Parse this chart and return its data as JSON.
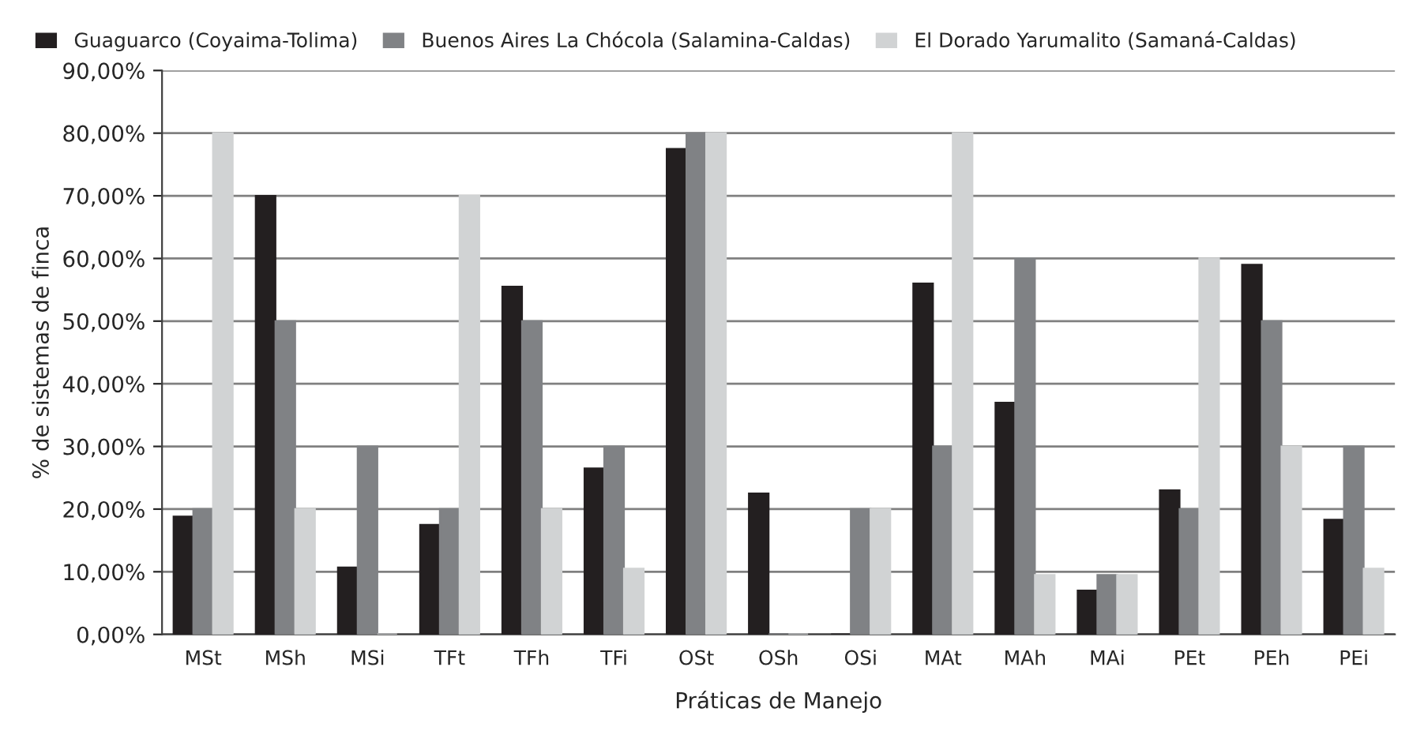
{
  "chart_data": {
    "type": "bar",
    "xlabel": "Práticas de Manejo",
    "ylabel": "% de sistemas de finca",
    "categories": [
      "MSt",
      "MSh",
      "MSi",
      "TFt",
      "TFh",
      "TFi",
      "OSt",
      "OSh",
      "OSi",
      "MAt",
      "MAh",
      "MAi",
      "PEt",
      "PEh",
      "PEi"
    ],
    "series": [
      {
        "name": "Guaguarco (Coyaima-Tolima)",
        "color": "#231f20",
        "values": [
          18.8,
          70,
          10.7,
          17.5,
          55.5,
          26.5,
          77.5,
          22.5,
          0,
          56,
          37,
          7,
          23,
          59,
          18.3
        ]
      },
      {
        "name": "Buenos Aires La Chócola (Salamina-Caldas)",
        "color": "#808285",
        "values": [
          20,
          50,
          30,
          20,
          50,
          30,
          80,
          0,
          20,
          30,
          60,
          9.5,
          20,
          50,
          30
        ]
      },
      {
        "name": "El Dorado Yarumalito (Samaná-Caldas)",
        "color": "#d1d3d4",
        "values": [
          80,
          20,
          0,
          70,
          20,
          10.5,
          80,
          0,
          20,
          80,
          9.5,
          9.5,
          60,
          30,
          10.5
        ]
      }
    ],
    "ylim": [
      0,
      90
    ],
    "yticks": [
      {
        "value": 0,
        "label": "0,00%"
      },
      {
        "value": 10,
        "label": "10,00%"
      },
      {
        "value": 20,
        "label": "20,00%"
      },
      {
        "value": 30,
        "label": "30,00%"
      },
      {
        "value": 40,
        "label": "40,00%"
      },
      {
        "value": 50,
        "label": "50,00%"
      },
      {
        "value": 60,
        "label": "60,00%"
      },
      {
        "value": 70,
        "label": "70,00%"
      },
      {
        "value": 80,
        "label": "80,00%"
      },
      {
        "value": 90,
        "label": "90,00%"
      }
    ],
    "grid": "y",
    "legend": "top left"
  }
}
